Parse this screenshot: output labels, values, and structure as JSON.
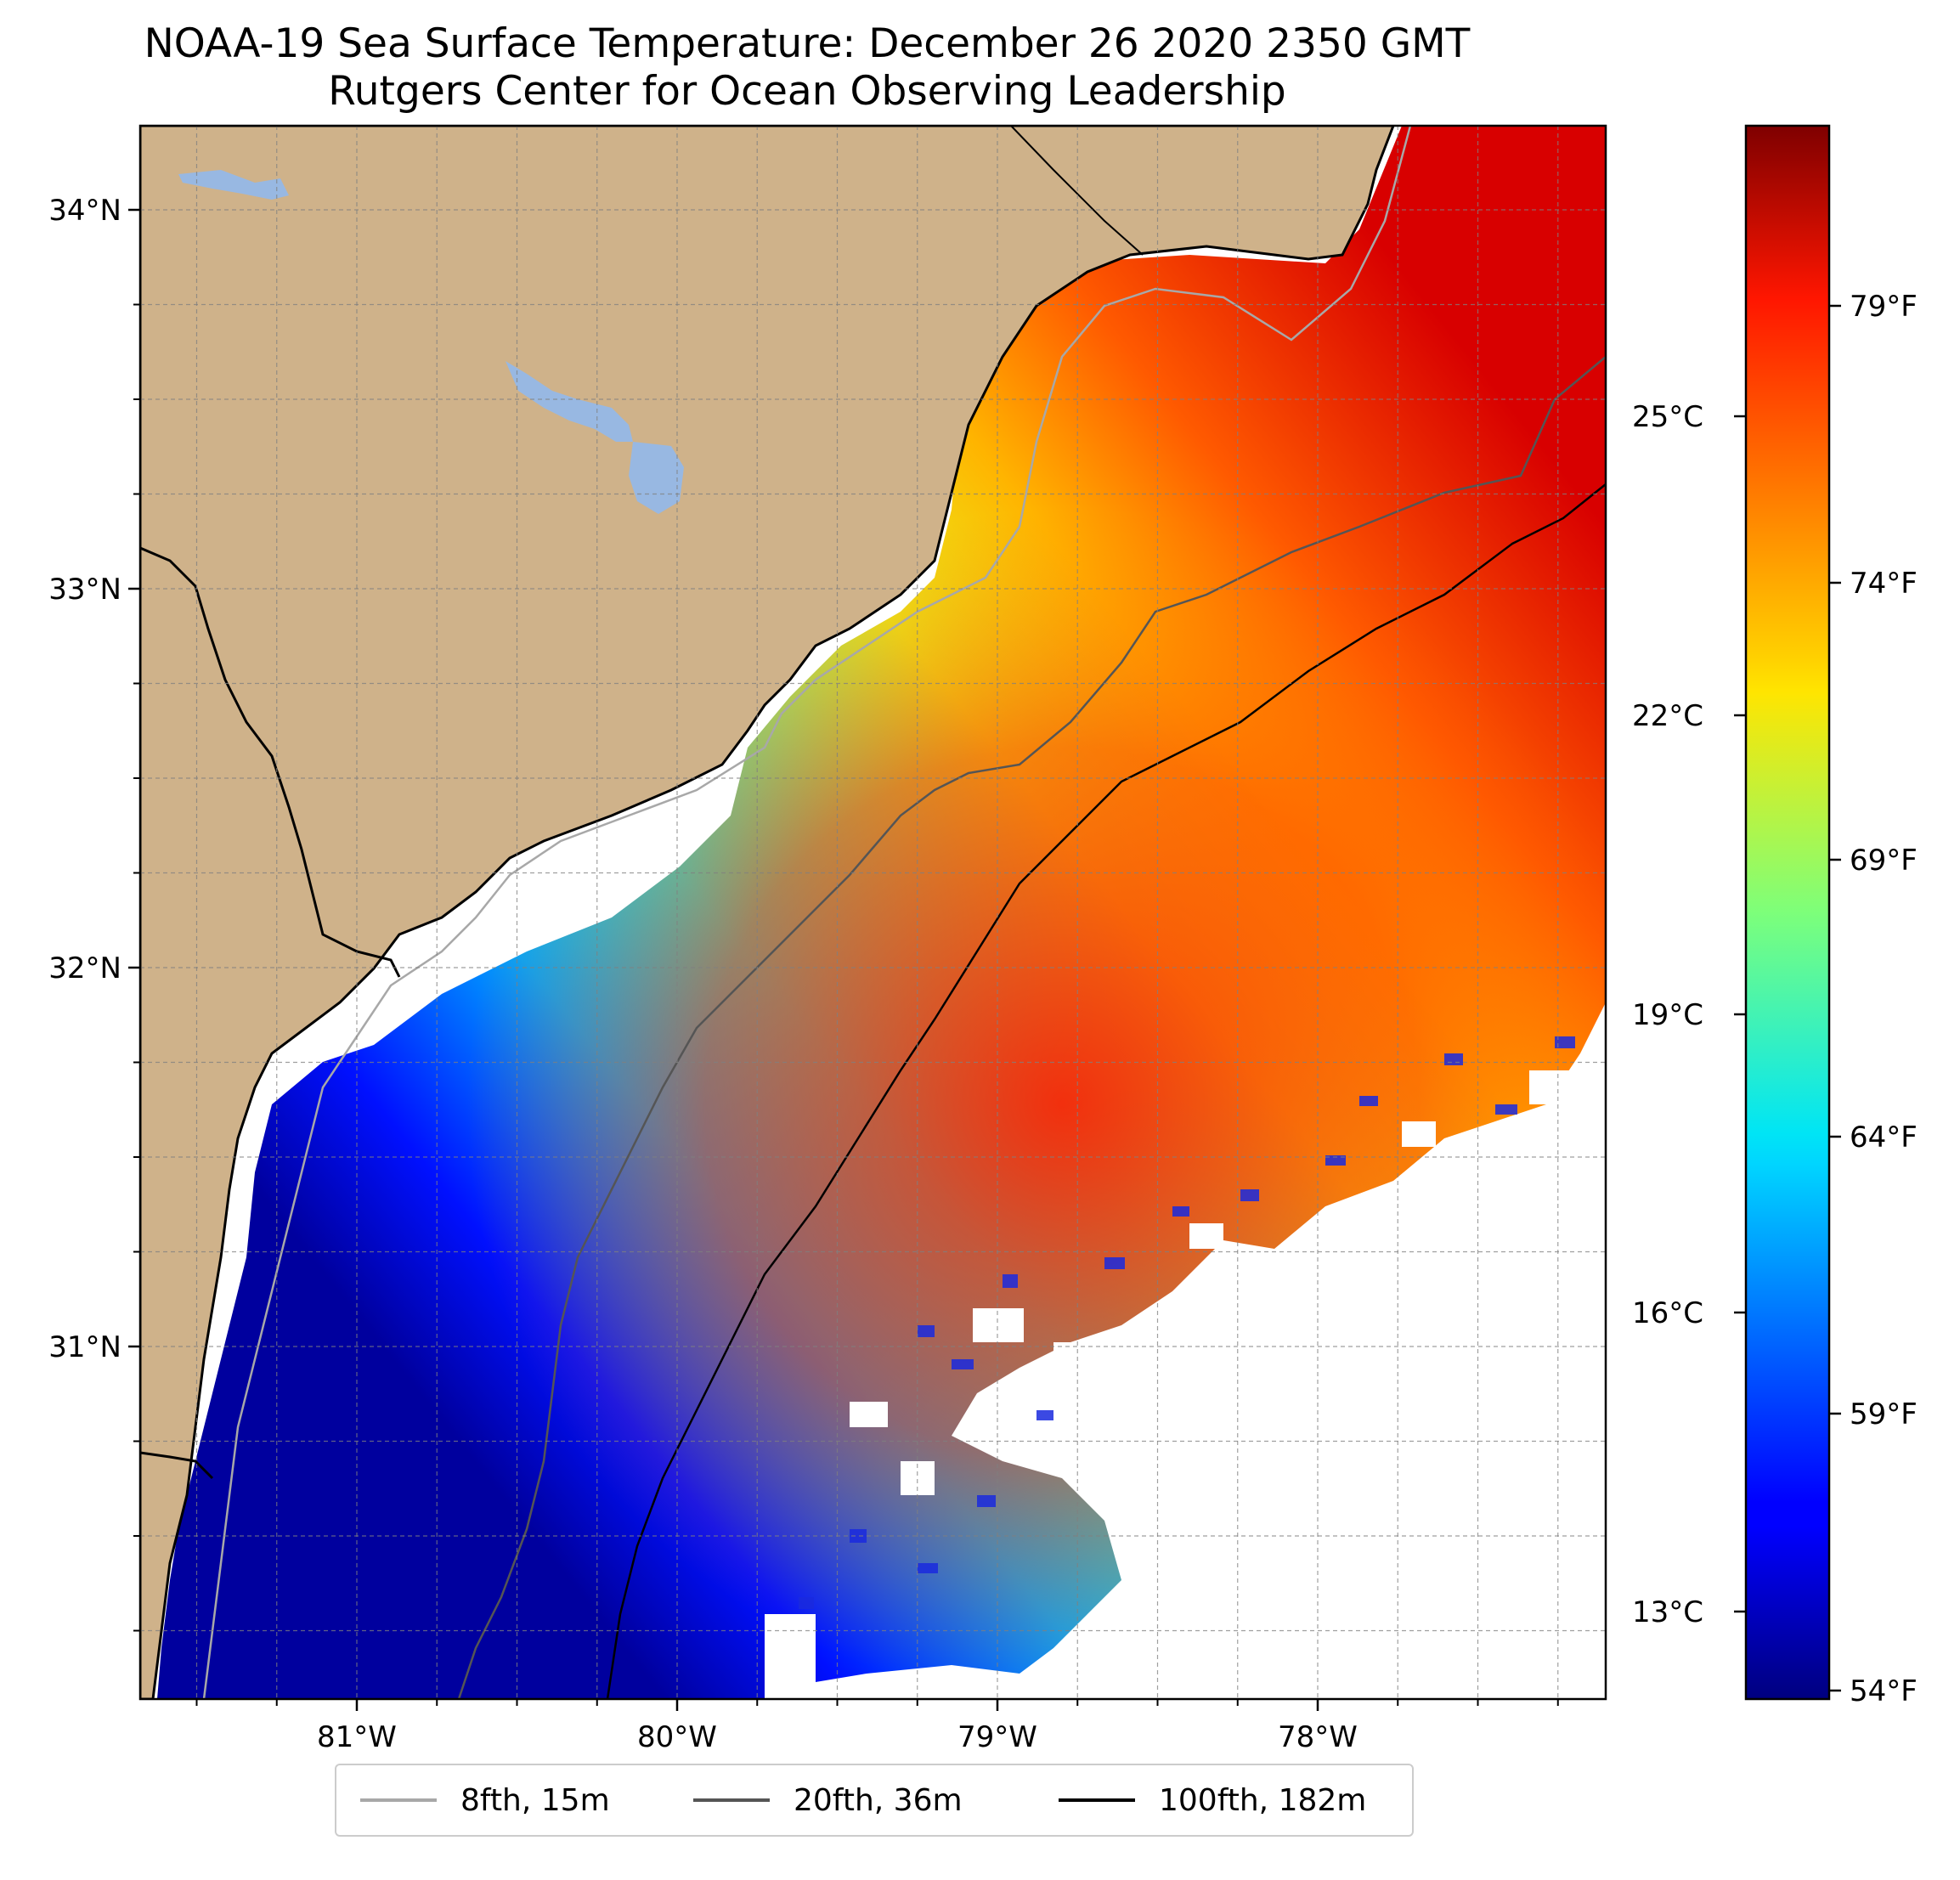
{
  "title": "NOAA-19 Sea Surface Temperature: December 26 2020 2350 GMT",
  "subtitle": "Rutgers Center for Ocean Observing Leadership",
  "map": {
    "lon_ticks": [
      {
        "label": "81°W",
        "value": -81
      },
      {
        "label": "80°W",
        "value": -80
      },
      {
        "label": "79°W",
        "value": -79
      },
      {
        "label": "78°W",
        "value": -78
      }
    ],
    "lat_ticks": [
      {
        "label": "34°N",
        "value": 34
      },
      {
        "label": "33°N",
        "value": 33
      },
      {
        "label": "32°N",
        "value": 32
      },
      {
        "label": "31°N",
        "value": 31
      }
    ],
    "gridlines": true,
    "land_color": "#cfb28a",
    "water_body_color": "#98b8e2",
    "no_data_color": "#ffffff"
  },
  "colorbar": {
    "colormap": "jet",
    "celsius_ticks": [
      "25°C",
      "22°C",
      "19°C",
      "16°C",
      "13°C"
    ],
    "fahrenheit_ticks": [
      "79°F",
      "74°F",
      "69°F",
      "64°F",
      "59°F",
      "54°F"
    ]
  },
  "legend": {
    "entries": [
      {
        "label": "8fth, 15m",
        "color": "#a8a8a8"
      },
      {
        "label": "20fth, 36m",
        "color": "#555555"
      },
      {
        "label": "100fth, 182m",
        "color": "#000000"
      }
    ]
  }
}
